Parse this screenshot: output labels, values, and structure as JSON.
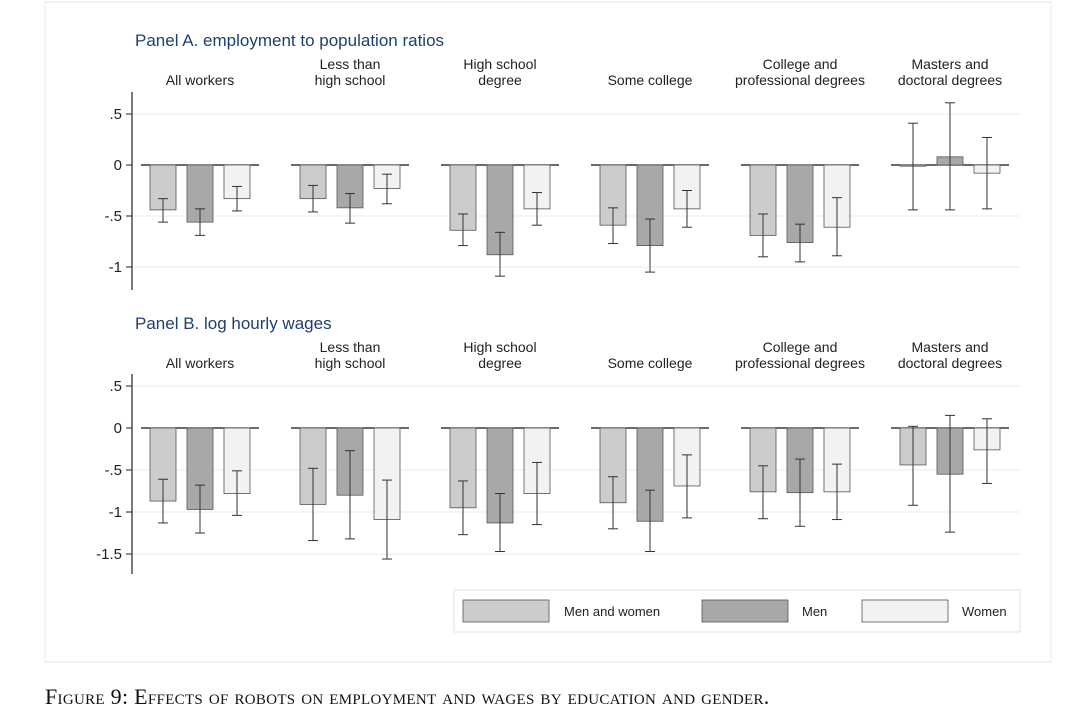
{
  "figure": {
    "caption": "Figure 9: Effects of robots on employment and wages by education and gender."
  },
  "colors": {
    "men_and_women": "#cccccc",
    "men": "#a8a8a8",
    "women": "#f2f2f2",
    "title": "#1f3f6e",
    "grid": "#e4ecee"
  },
  "legend": {
    "position": "bottom-right",
    "items": [
      {
        "key": "men_and_women",
        "label": "Men and women"
      },
      {
        "key": "men",
        "label": "Men"
      },
      {
        "key": "women",
        "label": "Women"
      }
    ]
  },
  "chart_data": [
    {
      "type": "bar",
      "title": "Panel A. employment to population ratios",
      "categories": [
        [
          "All workers"
        ],
        [
          "Less than",
          "high school"
        ],
        [
          "High school",
          "degree"
        ],
        [
          "Some college"
        ],
        [
          "College and",
          "professional degrees"
        ],
        [
          "Masters and",
          "doctoral degrees"
        ]
      ],
      "yticks": [
        0.5,
        0,
        -0.5,
        -1
      ],
      "ytick_labels": [
        ".5",
        "0",
        "-.5",
        "-1"
      ],
      "ylim": [
        -1.15,
        0.72
      ],
      "grid": true,
      "series": [
        {
          "name": "Men and women",
          "key": "men_and_women",
          "values": [
            -0.44,
            -0.33,
            -0.64,
            -0.59,
            -0.69,
            -0.01
          ],
          "ci_low": [
            -0.56,
            -0.46,
            -0.79,
            -0.77,
            -0.9,
            -0.44
          ],
          "ci_high": [
            -0.33,
            -0.2,
            -0.48,
            -0.42,
            -0.48,
            0.41
          ]
        },
        {
          "name": "Men",
          "key": "men",
          "values": [
            -0.56,
            -0.42,
            -0.88,
            -0.79,
            -0.76,
            0.08
          ],
          "ci_low": [
            -0.69,
            -0.57,
            -1.09,
            -1.05,
            -0.95,
            -0.44
          ],
          "ci_high": [
            -0.43,
            -0.28,
            -0.66,
            -0.53,
            -0.58,
            0.61
          ]
        },
        {
          "name": "Women",
          "key": "women",
          "values": [
            -0.33,
            -0.23,
            -0.43,
            -0.43,
            -0.61,
            -0.08
          ],
          "ci_low": [
            -0.45,
            -0.38,
            -0.59,
            -0.61,
            -0.89,
            -0.43
          ],
          "ci_high": [
            -0.21,
            -0.09,
            -0.27,
            -0.25,
            -0.32,
            0.27
          ]
        }
      ]
    },
    {
      "type": "bar",
      "title": "Panel B. log hourly wages",
      "categories": [
        [
          "All workers"
        ],
        [
          "Less than",
          "high school"
        ],
        [
          "High school",
          "degree"
        ],
        [
          "Some college"
        ],
        [
          "College and",
          "professional degrees"
        ],
        [
          "Masters and",
          "doctoral degrees"
        ]
      ],
      "yticks": [
        0.5,
        0,
        -0.5,
        -1,
        -1.5
      ],
      "ytick_labels": [
        ".5",
        "0",
        "-.5",
        "-1",
        "-1.5"
      ],
      "ylim": [
        -1.65,
        0.62
      ],
      "grid": true,
      "series": [
        {
          "name": "Men and women",
          "key": "men_and_women",
          "values": [
            -0.87,
            -0.91,
            -0.95,
            -0.89,
            -0.76,
            -0.44
          ],
          "ci_low": [
            -1.13,
            -1.34,
            -1.27,
            -1.2,
            -1.08,
            -0.92
          ],
          "ci_high": [
            -0.61,
            -0.48,
            -0.63,
            -0.58,
            -0.45,
            0.02
          ]
        },
        {
          "name": "Men",
          "key": "men",
          "values": [
            -0.97,
            -0.8,
            -1.13,
            -1.11,
            -0.77,
            -0.55
          ],
          "ci_low": [
            -1.25,
            -1.32,
            -1.47,
            -1.47,
            -1.17,
            -1.24
          ],
          "ci_high": [
            -0.68,
            -0.27,
            -0.78,
            -0.74,
            -0.37,
            0.15
          ]
        },
        {
          "name": "Women",
          "key": "women",
          "values": [
            -0.78,
            -1.09,
            -0.78,
            -0.69,
            -0.76,
            -0.26
          ],
          "ci_low": [
            -1.04,
            -1.56,
            -1.15,
            -1.07,
            -1.09,
            -0.66
          ],
          "ci_high": [
            -0.51,
            -0.62,
            -0.41,
            -0.32,
            -0.43,
            0.11
          ]
        }
      ]
    }
  ]
}
